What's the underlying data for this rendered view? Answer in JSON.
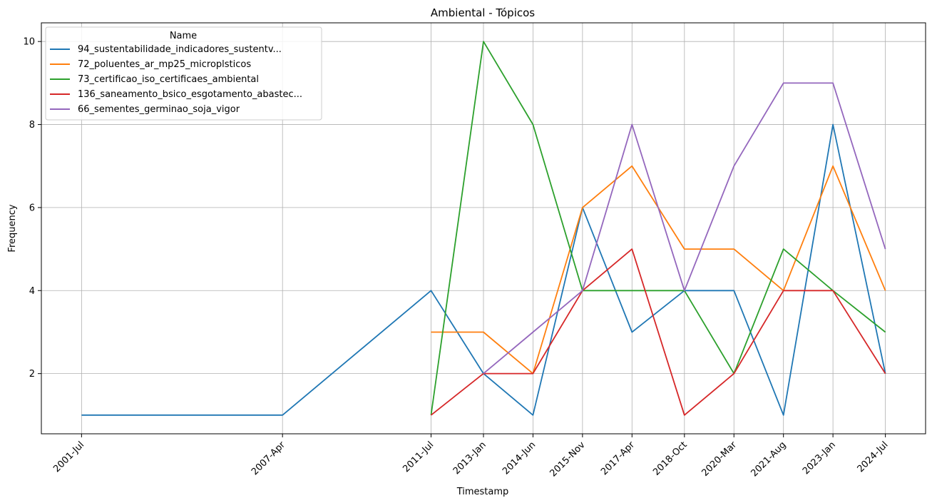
{
  "chart_data": {
    "type": "line",
    "title": "Ambiental - Tópicos",
    "xlabel": "Timestamp",
    "ylabel": "Frequency",
    "x_ticks": [
      "2001-Jul",
      "2007-Apr",
      "2011-Jul",
      "2013-Jan",
      "2014-Jun",
      "2015-Nov",
      "2017-Apr",
      "2018-Oct",
      "2020-Mar",
      "2021-Aug",
      "2023-Jan",
      "2024-Jul"
    ],
    "y_ticks": [
      2,
      4,
      6,
      8,
      10
    ],
    "ylim": [
      0.55,
      10.45
    ],
    "grid": true,
    "legend": {
      "title": "Name",
      "placement": "top-left"
    },
    "series": [
      {
        "name": "94_sustentabilidade_indicadores_sustentv...",
        "color": "#1f77b4",
        "points": [
          [
            "2001-Jul",
            1
          ],
          [
            "2007-Apr",
            1
          ],
          [
            "2011-Jul",
            4
          ],
          [
            "2013-Jan",
            2
          ],
          [
            "2014-Jun",
            1
          ],
          [
            "2015-Nov",
            6
          ],
          [
            "2017-Apr",
            3
          ],
          [
            "2018-Oct",
            4
          ],
          [
            "2020-Mar",
            4
          ],
          [
            "2021-Aug",
            1
          ],
          [
            "2023-Jan",
            8
          ],
          [
            "2024-Jul",
            2
          ]
        ]
      },
      {
        "name": "72_poluentes_ar_mp25_microplsticos",
        "color": "#ff7f0e",
        "points": [
          [
            "2011-Jul",
            3
          ],
          [
            "2013-Jan",
            3
          ],
          [
            "2014-Jun",
            2
          ],
          [
            "2015-Nov",
            6
          ],
          [
            "2017-Apr",
            7
          ],
          [
            "2018-Oct",
            5
          ],
          [
            "2020-Mar",
            5
          ],
          [
            "2021-Aug",
            4
          ],
          [
            "2023-Jan",
            7
          ],
          [
            "2024-Jul",
            4
          ]
        ]
      },
      {
        "name": "73_certificao_iso_certificaes_ambiental",
        "color": "#2ca02c",
        "points": [
          [
            "2011-Jul",
            1
          ],
          [
            "2013-Jan",
            10
          ],
          [
            "2014-Jun",
            8
          ],
          [
            "2015-Nov",
            4
          ],
          [
            "2017-Apr",
            4
          ],
          [
            "2018-Oct",
            4
          ],
          [
            "2020-Mar",
            2
          ],
          [
            "2021-Aug",
            5
          ],
          [
            "2023-Jan",
            4
          ],
          [
            "2024-Jul",
            3
          ]
        ]
      },
      {
        "name": "136_saneamento_bsico_esgotamento_abastec...",
        "color": "#d62728",
        "points": [
          [
            "2011-Jul",
            1
          ],
          [
            "2013-Jan",
            2
          ],
          [
            "2014-Jun",
            2
          ],
          [
            "2015-Nov",
            4
          ],
          [
            "2017-Apr",
            5
          ],
          [
            "2018-Oct",
            1
          ],
          [
            "2020-Mar",
            2
          ],
          [
            "2021-Aug",
            4
          ],
          [
            "2023-Jan",
            4
          ],
          [
            "2024-Jul",
            2
          ]
        ]
      },
      {
        "name": "66_sementes_germinao_soja_vigor",
        "color": "#9467bd",
        "points": [
          [
            "2013-Jan",
            2
          ],
          [
            "2014-Jun",
            3
          ],
          [
            "2015-Nov",
            4
          ],
          [
            "2017-Apr",
            8
          ],
          [
            "2018-Oct",
            4
          ],
          [
            "2020-Mar",
            7
          ],
          [
            "2021-Aug",
            9
          ],
          [
            "2023-Jan",
            9
          ],
          [
            "2024-Jul",
            5
          ]
        ]
      }
    ]
  }
}
